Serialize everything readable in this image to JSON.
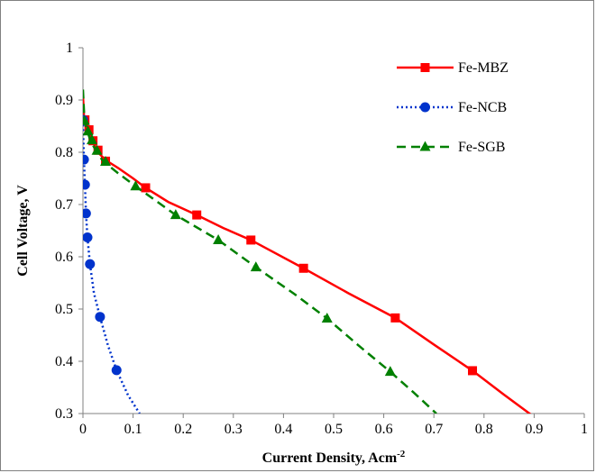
{
  "chart_data": {
    "type": "line",
    "title": "",
    "xlabel": "Current Density,  Acm",
    "xlabel_sup": "-2",
    "ylabel": "Cell Voltage, V",
    "xlim": [
      0,
      1
    ],
    "ylim": [
      0.3,
      1
    ],
    "xticks": [
      "0",
      "0.1",
      "0.2",
      "0.3",
      "0.4",
      "0.5",
      "0.6",
      "0.7",
      "0.8",
      "0.9",
      "1"
    ],
    "yticks": [
      "0.3",
      "0.4",
      "0.5",
      "0.6",
      "0.7",
      "0.8",
      "0.9",
      "1"
    ],
    "grid": false,
    "legend_position": "top-right",
    "series": [
      {
        "name": "Fe-MBZ",
        "color": "#ff0000",
        "line_style": "solid",
        "marker": "square",
        "curve": [
          [
            0.0,
            0.91
          ],
          [
            0.002,
            0.87
          ],
          [
            0.006,
            0.862
          ],
          [
            0.012,
            0.84
          ],
          [
            0.02,
            0.82
          ],
          [
            0.03,
            0.8
          ],
          [
            0.045,
            0.785
          ],
          [
            0.07,
            0.77
          ],
          [
            0.1,
            0.75
          ],
          [
            0.125,
            0.732
          ],
          [
            0.17,
            0.705
          ],
          [
            0.227,
            0.68
          ],
          [
            0.28,
            0.655
          ],
          [
            0.335,
            0.632
          ],
          [
            0.44,
            0.578
          ],
          [
            0.53,
            0.53
          ],
          [
            0.623,
            0.483
          ],
          [
            0.7,
            0.432
          ],
          [
            0.777,
            0.382
          ],
          [
            0.84,
            0.336
          ],
          [
            0.895,
            0.297
          ]
        ],
        "markers": [
          [
            0.004,
            0.862
          ],
          [
            0.012,
            0.843
          ],
          [
            0.02,
            0.822
          ],
          [
            0.03,
            0.804
          ],
          [
            0.045,
            0.783
          ],
          [
            0.125,
            0.732
          ],
          [
            0.227,
            0.68
          ],
          [
            0.335,
            0.632
          ],
          [
            0.44,
            0.578
          ],
          [
            0.623,
            0.483
          ],
          [
            0.777,
            0.382
          ]
        ]
      },
      {
        "name": "Fe-NCB",
        "color": "#0033cc",
        "line_style": "dotted",
        "marker": "circle",
        "curve": [
          [
            0.0,
            0.87
          ],
          [
            0.001,
            0.82
          ],
          [
            0.002,
            0.785
          ],
          [
            0.004,
            0.738
          ],
          [
            0.006,
            0.683
          ],
          [
            0.009,
            0.637
          ],
          [
            0.014,
            0.586
          ],
          [
            0.022,
            0.53
          ],
          [
            0.034,
            0.485
          ],
          [
            0.05,
            0.43
          ],
          [
            0.067,
            0.383
          ],
          [
            0.09,
            0.335
          ],
          [
            0.113,
            0.3
          ]
        ],
        "markers": [
          [
            0.0,
            0.862
          ],
          [
            0.002,
            0.786
          ],
          [
            0.004,
            0.738
          ],
          [
            0.006,
            0.683
          ],
          [
            0.009,
            0.637
          ],
          [
            0.014,
            0.586
          ],
          [
            0.034,
            0.485
          ],
          [
            0.067,
            0.383
          ]
        ]
      },
      {
        "name": "Fe-SGB",
        "color": "#008000",
        "line_style": "dashed",
        "marker": "triangle",
        "curve": [
          [
            0.0,
            0.92
          ],
          [
            0.003,
            0.86
          ],
          [
            0.008,
            0.843
          ],
          [
            0.015,
            0.822
          ],
          [
            0.025,
            0.805
          ],
          [
            0.04,
            0.783
          ],
          [
            0.07,
            0.76
          ],
          [
            0.105,
            0.735
          ],
          [
            0.185,
            0.68
          ],
          [
            0.27,
            0.632
          ],
          [
            0.345,
            0.58
          ],
          [
            0.42,
            0.53
          ],
          [
            0.487,
            0.482
          ],
          [
            0.55,
            0.43
          ],
          [
            0.613,
            0.38
          ],
          [
            0.66,
            0.34
          ],
          [
            0.705,
            0.3
          ]
        ],
        "markers": [
          [
            0.003,
            0.86
          ],
          [
            0.01,
            0.84
          ],
          [
            0.018,
            0.823
          ],
          [
            0.028,
            0.803
          ],
          [
            0.045,
            0.782
          ],
          [
            0.105,
            0.735
          ],
          [
            0.185,
            0.68
          ],
          [
            0.27,
            0.632
          ],
          [
            0.345,
            0.58
          ],
          [
            0.487,
            0.482
          ],
          [
            0.613,
            0.38
          ]
        ]
      }
    ]
  }
}
